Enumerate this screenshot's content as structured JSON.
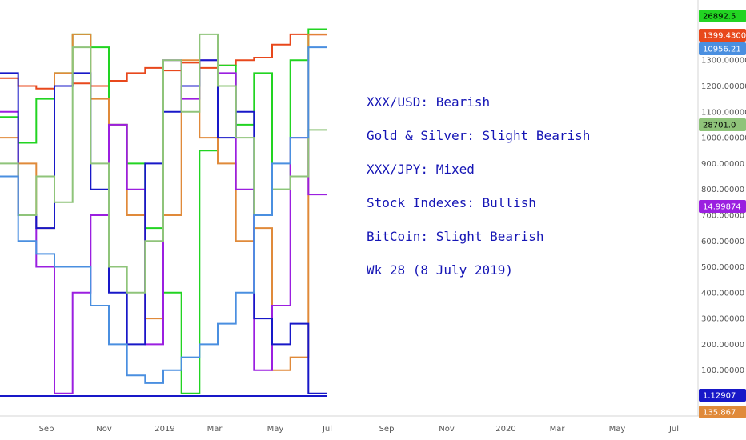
{
  "chart_data": {
    "type": "line",
    "title": "",
    "xlabel": "",
    "ylabel": "",
    "x_ticks": [
      "Sep",
      "Nov",
      "2019",
      "Mar",
      "May",
      "Jul",
      "Sep",
      "Nov",
      "2020",
      "Mar",
      "May",
      "Jul"
    ],
    "y_ticks": [
      "100.00000",
      "200.00000",
      "300.00000",
      "400.00000",
      "500.00000",
      "600.00000",
      "700.00000",
      "800.00000",
      "900.00000",
      "1000.00000",
      "1100.00000",
      "1200.00000",
      "1300.00000"
    ],
    "ylim": [
      0,
      1440
    ],
    "grid": false,
    "price_badges": [
      {
        "label": "26892.5",
        "color": "#22d422",
        "text_color": "#000000"
      },
      {
        "label": "1399.43000",
        "color": "#e8481c",
        "text_color": "#ffffff"
      },
      {
        "label": "10956.21",
        "color": "#4a8fe0",
        "text_color": "#ffffff"
      },
      {
        "label": "28701.0",
        "color": "#8fc47a",
        "text_color": "#000000"
      },
      {
        "label": "14.99874",
        "color": "#9b1fe0",
        "text_color": "#ffffff"
      },
      {
        "label": "1.12907",
        "color": "#1818c8",
        "text_color": "#ffffff"
      },
      {
        "label": "135.867",
        "color": "#e08a3a",
        "text_color": "#ffffff"
      }
    ],
    "series": [
      {
        "name": "",
        "color": "#e8481c",
        "values": [
          1230,
          1200,
          1190,
          1200,
          1210,
          1200,
          1220,
          1250,
          1270,
          1260,
          1290,
          1270,
          1280,
          1300,
          1310,
          1360,
          1400,
          1399
        ]
      },
      {
        "name": "",
        "color": "#22d422",
        "values": [
          1080,
          980,
          1150,
          1250,
          1400,
          1350,
          1050,
          900,
          650,
          400,
          10,
          950,
          1280,
          1050,
          1250,
          800,
          1300,
          1420
        ]
      },
      {
        "name": "",
        "color": "#e08a3a",
        "values": [
          1000,
          900,
          650,
          1250,
          1400,
          1150,
          1050,
          700,
          300,
          700,
          1300,
          1000,
          900,
          600,
          650,
          100,
          150,
          1400
        ]
      },
      {
        "name": "",
        "color": "#9b1fe0",
        "values": [
          1100,
          700,
          500,
          10,
          400,
          700,
          1050,
          800,
          200,
          1300,
          1150,
          1300,
          1250,
          800,
          100,
          350,
          1000,
          780
        ]
      },
      {
        "name": "",
        "color": "#1818c8",
        "values": [
          1250,
          700,
          650,
          1200,
          1250,
          800,
          400,
          200,
          900,
          1100,
          1200,
          1300,
          1000,
          1100,
          300,
          200,
          280,
          10
        ]
      },
      {
        "name": "",
        "color": "#8fc47a",
        "values": [
          900,
          700,
          850,
          750,
          1350,
          900,
          500,
          400,
          600,
          1300,
          1100,
          1400,
          1200,
          1000,
          700,
          800,
          850,
          1030
        ]
      },
      {
        "name": "",
        "color": "#4a8fe0",
        "values": [
          850,
          600,
          550,
          500,
          500,
          350,
          200,
          80,
          50,
          100,
          150,
          200,
          280,
          400,
          700,
          900,
          1000,
          1350
        ]
      }
    ]
  },
  "annotations": [
    "XXX/USD: Bearish",
    "Gold & Silver:  Slight Bearish",
    "XXX/JPY: Mixed",
    "Stock Indexes: Bullish",
    "BitCoin: Slight Bearish",
    "Wk 28 (8 July 2019)"
  ]
}
